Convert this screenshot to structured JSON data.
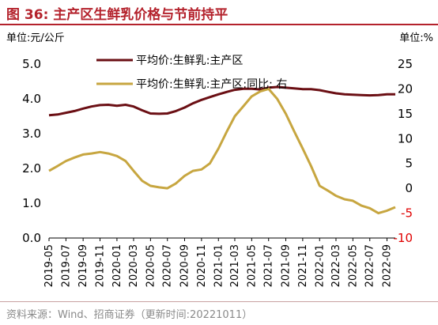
{
  "figure": {
    "title": "图 36:  主产区生鲜乳价格与节前持平",
    "source": "资料来源：Wind、招商证券（更新时间:20221011）"
  },
  "chart_data": {
    "type": "line",
    "left_unit": "单位:元/公斤",
    "right_unit": "单位:%",
    "left_axis": {
      "range": [
        0,
        5
      ],
      "ticks": [
        "0.0",
        "1.0",
        "2.0",
        "3.0",
        "4.0",
        "5.0"
      ]
    },
    "right_axis": {
      "range": [
        -10,
        25
      ],
      "ticks": [
        "-10",
        "-5",
        "0",
        "5",
        "10",
        "15",
        "20",
        "25"
      ],
      "negative_color": "#e00000"
    },
    "x_ticks": [
      "2019-05",
      "2019-07",
      "2019-09",
      "2019-11",
      "2020-01",
      "2020-03",
      "2020-05",
      "2020-07",
      "2020-09",
      "2020-11",
      "2021-01",
      "2021-03",
      "2021-05",
      "2021-07",
      "2021-09",
      "2021-11",
      "2022-01",
      "2022-03",
      "2022-05",
      "2022-07",
      "2022-09"
    ],
    "grid": false,
    "legend_position": "top",
    "series": [
      {
        "name": "平均价:生鲜乳:主产区",
        "axis": "left",
        "color": "#6b0f14",
        "points": [
          [
            "2019-05-01",
            3.53
          ],
          [
            "2019-06-01",
            3.55
          ],
          [
            "2019-07-01",
            3.6
          ],
          [
            "2019-08-01",
            3.65
          ],
          [
            "2019-09-01",
            3.72
          ],
          [
            "2019-10-01",
            3.78
          ],
          [
            "2019-11-01",
            3.82
          ],
          [
            "2019-12-01",
            3.83
          ],
          [
            "2020-01-01",
            3.8
          ],
          [
            "2020-02-01",
            3.83
          ],
          [
            "2020-03-01",
            3.78
          ],
          [
            "2020-04-01",
            3.67
          ],
          [
            "2020-05-01",
            3.58
          ],
          [
            "2020-06-01",
            3.57
          ],
          [
            "2020-07-01",
            3.58
          ],
          [
            "2020-08-01",
            3.65
          ],
          [
            "2020-09-01",
            3.75
          ],
          [
            "2020-10-01",
            3.87
          ],
          [
            "2020-11-01",
            3.97
          ],
          [
            "2020-12-01",
            4.05
          ],
          [
            "2021-01-01",
            4.13
          ],
          [
            "2021-02-01",
            4.2
          ],
          [
            "2021-03-01",
            4.26
          ],
          [
            "2021-04-01",
            4.29
          ],
          [
            "2021-05-01",
            4.29
          ],
          [
            "2021-06-01",
            4.27
          ],
          [
            "2021-07-01",
            4.32
          ],
          [
            "2021-08-01",
            4.34
          ],
          [
            "2021-09-01",
            4.32
          ],
          [
            "2021-10-01",
            4.3
          ],
          [
            "2021-11-01",
            4.28
          ],
          [
            "2021-12-01",
            4.28
          ],
          [
            "2022-01-01",
            4.25
          ],
          [
            "2022-02-01",
            4.2
          ],
          [
            "2022-03-01",
            4.16
          ],
          [
            "2022-04-01",
            4.13
          ],
          [
            "2022-05-01",
            4.12
          ],
          [
            "2022-06-01",
            4.11
          ],
          [
            "2022-07-01",
            4.1
          ],
          [
            "2022-08-01",
            4.11
          ],
          [
            "2022-09-01",
            4.13
          ],
          [
            "2022-10-01",
            4.13
          ]
        ]
      },
      {
        "name": "平均价:生鲜乳:主产区:同比:  右",
        "axis": "right",
        "color": "#c7a640",
        "points": [
          [
            "2019-05-01",
            3.5
          ],
          [
            "2019-06-01",
            4.5
          ],
          [
            "2019-07-01",
            5.5
          ],
          [
            "2019-08-01",
            6.2
          ],
          [
            "2019-09-01",
            6.8
          ],
          [
            "2019-10-01",
            7.0
          ],
          [
            "2019-11-01",
            7.3
          ],
          [
            "2019-12-01",
            7.0
          ],
          [
            "2020-01-01",
            6.5
          ],
          [
            "2020-02-01",
            5.5
          ],
          [
            "2020-03-01",
            3.5
          ],
          [
            "2020-04-01",
            1.5
          ],
          [
            "2020-05-01",
            0.5
          ],
          [
            "2020-06-01",
            0.2
          ],
          [
            "2020-07-01",
            0.0
          ],
          [
            "2020-08-01",
            1.0
          ],
          [
            "2020-09-01",
            2.5
          ],
          [
            "2020-10-01",
            3.5
          ],
          [
            "2020-11-01",
            3.8
          ],
          [
            "2020-12-01",
            5.0
          ],
          [
            "2021-01-01",
            8.0
          ],
          [
            "2021-02-01",
            11.5
          ],
          [
            "2021-03-01",
            14.5
          ],
          [
            "2021-04-01",
            16.5
          ],
          [
            "2021-05-01",
            18.5
          ],
          [
            "2021-06-01",
            19.5
          ],
          [
            "2021-07-01",
            20.0
          ],
          [
            "2021-08-01",
            18.0
          ],
          [
            "2021-09-01",
            15.0
          ],
          [
            "2021-10-01",
            11.5
          ],
          [
            "2021-11-01",
            8.0
          ],
          [
            "2021-12-01",
            4.5
          ],
          [
            "2022-01-01",
            0.5
          ],
          [
            "2022-02-01",
            -0.5
          ],
          [
            "2022-03-01",
            -1.5
          ],
          [
            "2022-04-01",
            -2.2
          ],
          [
            "2022-05-01",
            -2.5
          ],
          [
            "2022-06-01",
            -3.5
          ],
          [
            "2022-07-01",
            -4.0
          ],
          [
            "2022-08-01",
            -5.0
          ],
          [
            "2022-09-01",
            -4.5
          ],
          [
            "2022-10-01",
            -3.8
          ]
        ]
      }
    ]
  }
}
